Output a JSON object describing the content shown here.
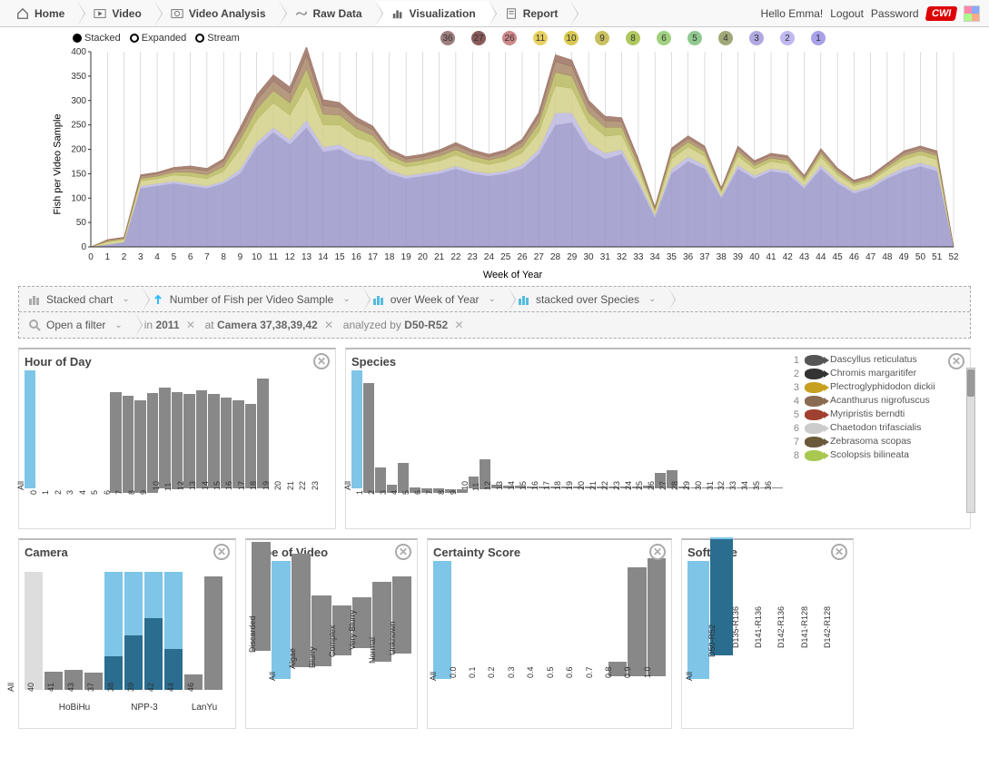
{
  "nav": {
    "home": "Home",
    "video": "Video",
    "analysis": "Video Analysis",
    "raw": "Raw Data",
    "viz": "Visualization",
    "report": "Report"
  },
  "user": {
    "hello": "Hello Emma!",
    "logout": "Logout",
    "password": "Password",
    "brand": "CWI"
  },
  "legend": {
    "stacked": "Stacked",
    "expanded": "Expanded",
    "stream": "Stream"
  },
  "badges": [
    {
      "n": "36",
      "c": "#9e7e7e"
    },
    {
      "n": "27",
      "c": "#8a5a5a"
    },
    {
      "n": "26",
      "c": "#c88"
    },
    {
      "n": "11",
      "c": "#e8d060"
    },
    {
      "n": "10",
      "c": "#d8c850"
    },
    {
      "n": "9",
      "c": "#c8c060"
    },
    {
      "n": "8",
      "c": "#b0c860"
    },
    {
      "n": "6",
      "c": "#a0d080"
    },
    {
      "n": "5",
      "c": "#90c890"
    },
    {
      "n": "4",
      "c": "#a0a878"
    },
    {
      "n": "3",
      "c": "#b0a8e0"
    },
    {
      "n": "2",
      "c": "#c0b8f0"
    },
    {
      "n": "1",
      "c": "#a8a0e8"
    }
  ],
  "main_chart": {
    "type": "stacked-area",
    "ylabel": "Fish per Video Sample",
    "xlabel": "Week of Year",
    "ylim": [
      0,
      400
    ],
    "ytick_step": 50,
    "xlim": [
      0,
      52
    ],
    "grid_color": "#bbb",
    "background": "#ffffff",
    "colors": [
      "#9a96c9",
      "#bcb8e0",
      "#d4d088",
      "#b8b860",
      "#a88868",
      "#9a7060"
    ],
    "series": [
      [
        0,
        5,
        10,
        120,
        125,
        130,
        125,
        120,
        130,
        150,
        205,
        235,
        210,
        245,
        195,
        200,
        180,
        175,
        150,
        140,
        145,
        150,
        160,
        150,
        145,
        150,
        160,
        190,
        250,
        255,
        200,
        180,
        190,
        130,
        60,
        150,
        175,
        160,
        100,
        160,
        140,
        155,
        150,
        120,
        160,
        130,
        110,
        120,
        140,
        155,
        165,
        155,
        0
      ],
      [
        0,
        0,
        0,
        5,
        5,
        5,
        5,
        5,
        5,
        10,
        10,
        10,
        10,
        15,
        10,
        10,
        10,
        8,
        8,
        6,
        6,
        6,
        6,
        6,
        6,
        6,
        8,
        10,
        25,
        20,
        15,
        12,
        10,
        8,
        5,
        10,
        10,
        8,
        4,
        8,
        6,
        6,
        6,
        5,
        8,
        6,
        5,
        5,
        6,
        8,
        8,
        8,
        0
      ],
      [
        0,
        5,
        5,
        10,
        10,
        12,
        15,
        15,
        20,
        40,
        45,
        50,
        50,
        70,
        45,
        40,
        35,
        30,
        20,
        18,
        18,
        20,
        22,
        20,
        18,
        20,
        25,
        35,
        55,
        50,
        40,
        35,
        30,
        20,
        8,
        20,
        20,
        18,
        8,
        18,
        14,
        14,
        14,
        10,
        16,
        12,
        10,
        10,
        12,
        16,
        16,
        16,
        0
      ],
      [
        0,
        2,
        2,
        5,
        5,
        6,
        8,
        8,
        10,
        20,
        22,
        25,
        25,
        35,
        22,
        20,
        18,
        15,
        10,
        9,
        9,
        10,
        11,
        10,
        9,
        10,
        12,
        18,
        28,
        25,
        20,
        18,
        15,
        10,
        4,
        10,
        10,
        9,
        4,
        9,
        7,
        7,
        7,
        5,
        8,
        6,
        5,
        5,
        6,
        8,
        8,
        8,
        0
      ],
      [
        0,
        2,
        2,
        5,
        5,
        6,
        8,
        8,
        10,
        15,
        18,
        20,
        20,
        28,
        18,
        16,
        14,
        12,
        8,
        7,
        7,
        8,
        9,
        8,
        7,
        8,
        10,
        14,
        22,
        20,
        16,
        14,
        12,
        8,
        3,
        8,
        8,
        7,
        3,
        7,
        6,
        6,
        6,
        4,
        6,
        5,
        4,
        4,
        5,
        6,
        6,
        6,
        0
      ],
      [
        0,
        1,
        1,
        3,
        3,
        4,
        5,
        5,
        6,
        10,
        12,
        13,
        13,
        18,
        12,
        10,
        9,
        8,
        5,
        5,
        5,
        5,
        6,
        5,
        5,
        5,
        6,
        9,
        14,
        13,
        10,
        9,
        8,
        5,
        2,
        5,
        5,
        5,
        2,
        5,
        4,
        4,
        4,
        3,
        4,
        3,
        3,
        3,
        3,
        4,
        4,
        4,
        0
      ]
    ]
  },
  "controls": {
    "chart_type": "Stacked chart",
    "measure": "Number of Fish per Video Sample",
    "over": "over Week of Year",
    "stacked_over": "stacked over Species",
    "open_filter": "Open a filter",
    "in_label": "in",
    "in_val": "2011",
    "at_label": "at",
    "at_val": "Camera 37,38,39,42",
    "analyzed_label": "analyzed by",
    "analyzed_val": "D50-R52"
  },
  "panels": {
    "hour": {
      "title": "Hour of Day",
      "labels": [
        "All",
        "0",
        "1",
        "2",
        "3",
        "4",
        "5",
        "6",
        "7",
        "8",
        "9",
        "10",
        "11",
        "12",
        "13",
        "14",
        "15",
        "16",
        "17",
        "18",
        "19",
        "20",
        "21",
        "22",
        "23"
      ],
      "values": [
        140,
        0,
        0,
        0,
        0,
        0,
        0,
        120,
        115,
        110,
        118,
        120,
        115,
        112,
        116,
        112,
        108,
        104,
        100,
        130,
        0,
        0,
        0,
        0,
        0
      ],
      "sel_idx": 0
    },
    "species": {
      "title": "Species",
      "labels": [
        "All",
        "1",
        "2",
        "3",
        "4",
        "5",
        "6",
        "7",
        "8",
        "9",
        "10",
        "11",
        "12",
        "13",
        "14",
        "15",
        "16",
        "17",
        "18",
        "19",
        "20",
        "21",
        "22",
        "23",
        "24",
        "25",
        "26",
        "27",
        "28",
        "29",
        "30",
        "31",
        "32",
        "33",
        "34",
        "35",
        "36"
      ],
      "values": [
        140,
        130,
        30,
        10,
        35,
        6,
        5,
        5,
        4,
        4,
        14,
        35,
        4,
        3,
        3,
        2,
        2,
        2,
        2,
        2,
        2,
        2,
        2,
        2,
        2,
        3,
        18,
        22,
        2,
        1,
        1,
        1,
        1,
        1,
        1,
        1,
        1
      ],
      "sel_idx": 0,
      "list": [
        {
          "i": 1,
          "name": "Dascyllus reticulatus",
          "c": "#555"
        },
        {
          "i": 2,
          "name": "Chromis margaritifer",
          "c": "#333"
        },
        {
          "i": 3,
          "name": "Plectroglyphidodon dickii",
          "c": "#c8a020"
        },
        {
          "i": 4,
          "name": "Acanthurus nigrofuscus",
          "c": "#8a6a50"
        },
        {
          "i": 5,
          "name": "Myripristis berndti",
          "c": "#a04030"
        },
        {
          "i": 6,
          "name": "Chaetodon trifascialis",
          "c": "#ccc"
        },
        {
          "i": 7,
          "name": "Zebrasoma scopas",
          "c": "#6a5a3a"
        },
        {
          "i": 8,
          "name": "Scolopsis bilineata",
          "c": "#a8c850"
        }
      ]
    },
    "camera": {
      "title": "Camera",
      "groups": [
        {
          "label": "",
          "items": [
            {
              "l": "All",
              "v": 140,
              "sel": false,
              "blue": false
            }
          ]
        },
        {
          "label": "HoBiHu",
          "items": [
            {
              "l": "40",
              "v": 22
            },
            {
              "l": "41",
              "v": 24
            },
            {
              "l": "43",
              "v": 20
            }
          ]
        },
        {
          "label": "NPP-3",
          "items": [
            {
              "l": "37",
              "v": 140,
              "blue": true,
              "inner": 40
            },
            {
              "l": "38",
              "v": 140,
              "blue": true,
              "inner": 65
            },
            {
              "l": "39",
              "v": 140,
              "blue": true,
              "inner": 85
            },
            {
              "l": "42",
              "v": 140,
              "blue": true,
              "inner": 48
            }
          ]
        },
        {
          "label": "LanYu",
          "items": [
            {
              "l": "44",
              "v": 18
            },
            {
              "l": "46",
              "v": 135
            }
          ]
        }
      ]
    },
    "video_type": {
      "title": "Type of Video",
      "labels": [
        "Discarded",
        "All",
        "Algae",
        "Blurry",
        "Complex",
        "Very Blurry",
        "Normal",
        "Unknown"
      ],
      "values": [
        130,
        140,
        135,
        85,
        60,
        60,
        95,
        92
      ],
      "sel_idx": 1
    },
    "certainty": {
      "title": "Certainty Score",
      "labels": [
        "All",
        "0.0",
        "0.1",
        "0.2",
        "0.3",
        "0.4",
        "0.5",
        "0.6",
        "0.7",
        "0.8",
        "0.9",
        "1.0"
      ],
      "values": [
        140,
        0,
        0,
        0,
        0,
        0,
        0,
        0,
        0,
        18,
        130,
        140
      ],
      "sel_idx": 0
    },
    "software": {
      "title": "Software",
      "labels": [
        "All",
        "D50-R52",
        "D135-R136",
        "D141-R136",
        "D142-R136",
        "D141-R128",
        "D142-R128"
      ],
      "values": [
        140,
        140,
        0,
        0,
        0,
        0,
        0
      ],
      "sel_idx": 1,
      "sel_inner": 138
    }
  }
}
